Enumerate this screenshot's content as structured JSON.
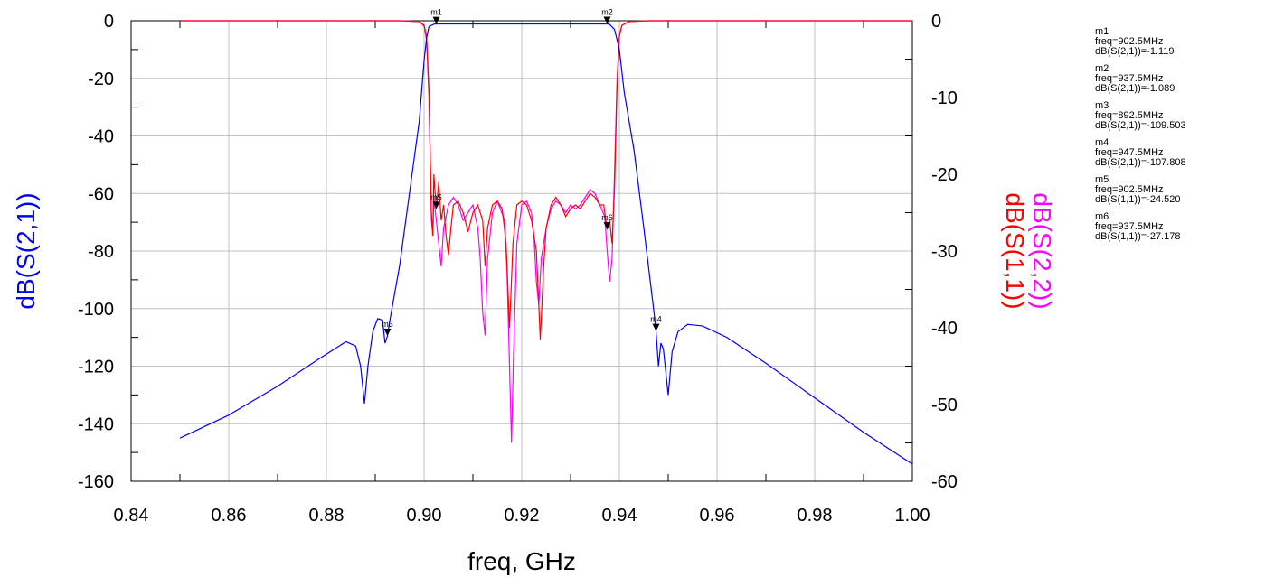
{
  "chart_data": {
    "type": "line",
    "xlabel": "freq, GHz",
    "ylabel_left": "dB(S(2,1))",
    "ylabel_right_top": "dB(S(2,2))",
    "ylabel_right_bottom": "dB(S(1,1))",
    "xlim": [
      0.84,
      1.0
    ],
    "ylim_left": [
      -160,
      0
    ],
    "ylim_right": [
      -60,
      0
    ],
    "x_ticks": [
      "0.84",
      "0.86",
      "0.88",
      "0.90",
      "0.92",
      "0.94",
      "0.96",
      "0.98",
      "1.00"
    ],
    "y_ticks_left": [
      "0",
      "-20",
      "-40",
      "-60",
      "-80",
      "-100",
      "-120",
      "-140",
      "-160"
    ],
    "y_ticks_right": [
      "0",
      "-10",
      "-20",
      "-30",
      "-40",
      "-50",
      "-60"
    ],
    "colors": {
      "s21": "#0000ff",
      "s11": "#ff0000",
      "s22": "#ff00ff",
      "grid": "#c0c0c0"
    },
    "series": [
      {
        "name": "dB(S(2,1))",
        "axis": "left",
        "color": "#0000ff",
        "points": [
          [
            0.85,
            -145
          ],
          [
            0.86,
            -137
          ],
          [
            0.87,
            -127
          ],
          [
            0.878,
            -118
          ],
          [
            0.884,
            -111.5
          ],
          [
            0.886,
            -113
          ],
          [
            0.887,
            -120
          ],
          [
            0.8878,
            -133
          ],
          [
            0.8885,
            -120
          ],
          [
            0.8895,
            -108
          ],
          [
            0.8905,
            -103.5
          ],
          [
            0.8915,
            -104
          ],
          [
            0.892,
            -112
          ],
          [
            0.8925,
            -109.5
          ],
          [
            0.893,
            -104
          ],
          [
            0.895,
            -85
          ],
          [
            0.897,
            -60
          ],
          [
            0.899,
            -35
          ],
          [
            0.9,
            -14
          ],
          [
            0.9005,
            -6
          ],
          [
            0.901,
            -2
          ],
          [
            0.902,
            -1.2
          ],
          [
            0.9025,
            -1.1
          ],
          [
            0.91,
            -1.1
          ],
          [
            0.92,
            -1.1
          ],
          [
            0.93,
            -1.1
          ],
          [
            0.9375,
            -1.09
          ],
          [
            0.938,
            -1.3
          ],
          [
            0.939,
            -3
          ],
          [
            0.94,
            -10
          ],
          [
            0.941,
            -25
          ],
          [
            0.943,
            -45
          ],
          [
            0.945,
            -72
          ],
          [
            0.947,
            -100
          ],
          [
            0.9475,
            -107.8
          ],
          [
            0.948,
            -120
          ],
          [
            0.9485,
            -112
          ],
          [
            0.949,
            -114
          ],
          [
            0.95,
            -130
          ],
          [
            0.9508,
            -115
          ],
          [
            0.952,
            -108
          ],
          [
            0.954,
            -105.5
          ],
          [
            0.957,
            -106
          ],
          [
            0.962,
            -110
          ],
          [
            0.97,
            -119
          ],
          [
            0.98,
            -131
          ],
          [
            0.99,
            -143
          ],
          [
            1.0,
            -154
          ]
        ]
      },
      {
        "name": "dB(S(1,1))",
        "axis": "right",
        "color": "#ff0000",
        "points": [
          [
            0.85,
            0
          ],
          [
            0.895,
            0
          ],
          [
            0.899,
            -0.1
          ],
          [
            0.9,
            -0.6
          ],
          [
            0.9005,
            -2
          ],
          [
            0.901,
            -9
          ],
          [
            0.9015,
            -25
          ],
          [
            0.9018,
            -28
          ],
          [
            0.902,
            -20
          ],
          [
            0.9025,
            -24.5
          ],
          [
            0.903,
            -21
          ],
          [
            0.9035,
            -26
          ],
          [
            0.904,
            -24
          ],
          [
            0.9045,
            -28
          ],
          [
            0.905,
            -30.5
          ],
          [
            0.9055,
            -27
          ],
          [
            0.906,
            -24
          ],
          [
            0.907,
            -23.5
          ],
          [
            0.908,
            -25
          ],
          [
            0.909,
            -27.5
          ],
          [
            0.91,
            -25
          ],
          [
            0.911,
            -24
          ],
          [
            0.912,
            -26
          ],
          [
            0.9125,
            -32
          ],
          [
            0.913,
            -27
          ],
          [
            0.914,
            -24
          ],
          [
            0.915,
            -23.5
          ],
          [
            0.916,
            -24.5
          ],
          [
            0.9168,
            -29
          ],
          [
            0.9175,
            -40
          ],
          [
            0.9182,
            -29
          ],
          [
            0.919,
            -24
          ],
          [
            0.92,
            -23.5
          ],
          [
            0.921,
            -24
          ],
          [
            0.922,
            -26
          ],
          [
            0.923,
            -30
          ],
          [
            0.9238,
            -41.5
          ],
          [
            0.9245,
            -32
          ],
          [
            0.925,
            -27
          ],
          [
            0.926,
            -24
          ],
          [
            0.927,
            -23
          ],
          [
            0.928,
            -24
          ],
          [
            0.929,
            -25.5
          ],
          [
            0.93,
            -24.5
          ],
          [
            0.931,
            -24
          ],
          [
            0.932,
            -24.5
          ],
          [
            0.933,
            -23.5
          ],
          [
            0.934,
            -22.5
          ],
          [
            0.935,
            -23
          ],
          [
            0.936,
            -24
          ],
          [
            0.9368,
            -24
          ],
          [
            0.9375,
            -27.2
          ],
          [
            0.938,
            -26
          ],
          [
            0.9385,
            -29
          ],
          [
            0.939,
            -22
          ],
          [
            0.9395,
            -9
          ],
          [
            0.94,
            -2
          ],
          [
            0.9405,
            -0.6
          ],
          [
            0.942,
            -0.1
          ],
          [
            0.946,
            0
          ],
          [
            1.0,
            0
          ]
        ]
      },
      {
        "name": "dB(S(2,2))",
        "axis": "right",
        "color": "#ff00ff",
        "points": [
          [
            0.85,
            0
          ],
          [
            0.895,
            0
          ],
          [
            0.899,
            -0.1
          ],
          [
            0.9,
            -0.7
          ],
          [
            0.9005,
            -2.5
          ],
          [
            0.901,
            -10
          ],
          [
            0.9015,
            -26
          ],
          [
            0.9018,
            -28
          ],
          [
            0.902,
            -23
          ],
          [
            0.9025,
            -26
          ],
          [
            0.903,
            -29
          ],
          [
            0.9035,
            -32
          ],
          [
            0.904,
            -27
          ],
          [
            0.905,
            -24
          ],
          [
            0.906,
            -23
          ],
          [
            0.907,
            -24
          ],
          [
            0.908,
            -26
          ],
          [
            0.909,
            -25
          ],
          [
            0.91,
            -24
          ],
          [
            0.911,
            -27
          ],
          [
            0.9115,
            -31
          ],
          [
            0.912,
            -38
          ],
          [
            0.9125,
            -41
          ],
          [
            0.913,
            -31
          ],
          [
            0.914,
            -25
          ],
          [
            0.915,
            -23.5
          ],
          [
            0.9165,
            -26
          ],
          [
            0.917,
            -33
          ],
          [
            0.9175,
            -45
          ],
          [
            0.9179,
            -55
          ],
          [
            0.9183,
            -44
          ],
          [
            0.919,
            -29
          ],
          [
            0.92,
            -24
          ],
          [
            0.921,
            -23.5
          ],
          [
            0.922,
            -25
          ],
          [
            0.9225,
            -28
          ],
          [
            0.923,
            -34
          ],
          [
            0.9235,
            -37
          ],
          [
            0.924,
            -31
          ],
          [
            0.925,
            -27
          ],
          [
            0.926,
            -24.5
          ],
          [
            0.927,
            -23.5
          ],
          [
            0.928,
            -24
          ],
          [
            0.929,
            -25
          ],
          [
            0.93,
            -24
          ],
          [
            0.931,
            -24.5
          ],
          [
            0.932,
            -24
          ],
          [
            0.933,
            -23
          ],
          [
            0.934,
            -22
          ],
          [
            0.935,
            -22.5
          ],
          [
            0.936,
            -24
          ],
          [
            0.937,
            -25.5
          ],
          [
            0.9375,
            -30
          ],
          [
            0.938,
            -34
          ],
          [
            0.9385,
            -31
          ],
          [
            0.939,
            -20
          ],
          [
            0.9395,
            -8
          ],
          [
            0.94,
            -2
          ],
          [
            0.9405,
            -0.6
          ],
          [
            0.942,
            -0.1
          ],
          [
            0.946,
            0
          ],
          [
            1.0,
            0
          ]
        ]
      }
    ],
    "markers": [
      {
        "name": "m1",
        "freq": "902.5MHz",
        "trace": "dB(S(2,1))",
        "value": "-1.119",
        "x": 0.9025,
        "y": -1.119,
        "axis": "left"
      },
      {
        "name": "m2",
        "freq": "937.5MHz",
        "trace": "dB(S(2,1))",
        "value": "-1.089",
        "x": 0.9375,
        "y": -1.089,
        "axis": "left"
      },
      {
        "name": "m3",
        "freq": "892.5MHz",
        "trace": "dB(S(2,1))",
        "value": "-109.503",
        "x": 0.8925,
        "y": -109.503,
        "axis": "left"
      },
      {
        "name": "m4",
        "freq": "947.5MHz",
        "trace": "dB(S(2,1))",
        "value": "-107.808",
        "x": 0.9475,
        "y": -107.808,
        "axis": "left"
      },
      {
        "name": "m5",
        "freq": "902.5MHz",
        "trace": "dB(S(1,1))",
        "value": "-24.520",
        "x": 0.9025,
        "y": -24.52,
        "axis": "right"
      },
      {
        "name": "m6",
        "freq": "937.5MHz",
        "trace": "dB(S(1,1))",
        "value": "-27.178",
        "x": 0.9375,
        "y": -27.178,
        "axis": "right"
      }
    ],
    "legend_placement": "right",
    "grid": true
  }
}
